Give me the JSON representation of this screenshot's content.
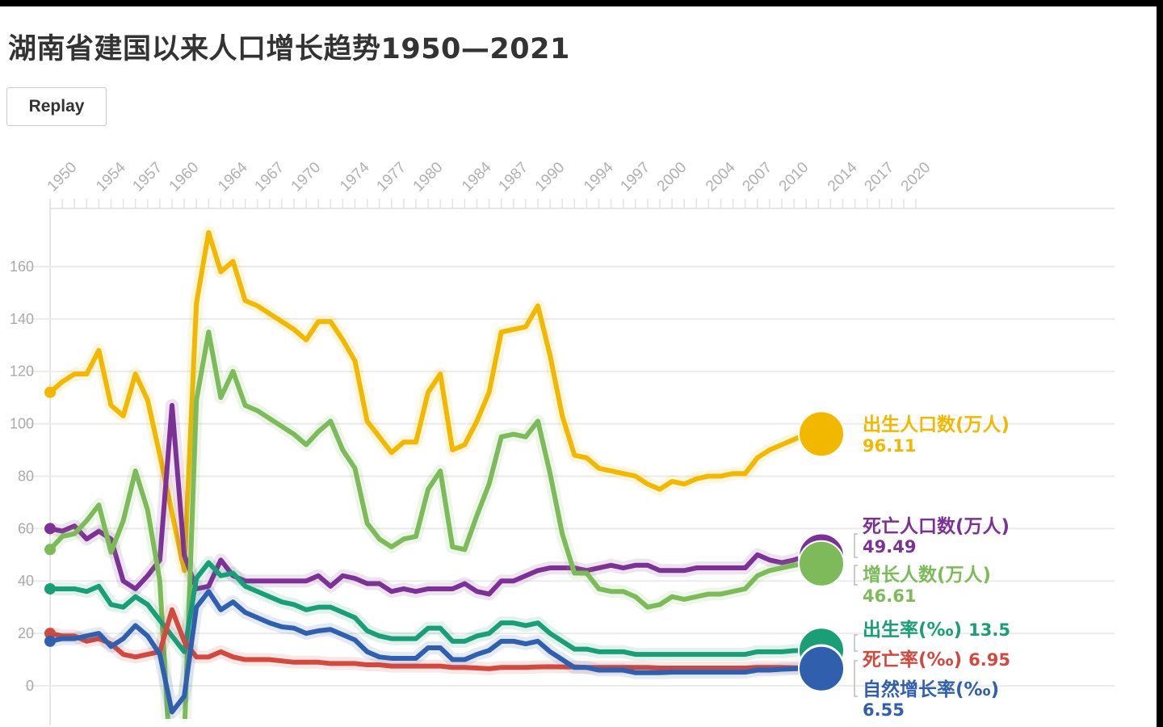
{
  "title": "湖南省建国以来人口增长趋势1950—2021",
  "replay_label": "Replay",
  "chart_data": {
    "type": "line",
    "title": "湖南省建国以来人口增长趋势1950—2021",
    "xlabel": "",
    "ylabel": "",
    "xlim": [
      1950,
      2021
    ],
    "ylim": [
      -15,
      180
    ],
    "grid": true,
    "legend": "end-of-line labels",
    "x_tick_labels": [
      "1950",
      "1954",
      "1957",
      "1960",
      "1964",
      "1967",
      "1970",
      "1974",
      "1977",
      "1980",
      "1984",
      "1987",
      "1990",
      "1994",
      "1997",
      "2000",
      "2004",
      "2007",
      "2010",
      "2014",
      "2017",
      "2020"
    ],
    "y_tick_labels": [
      "0",
      "20",
      "40",
      "60",
      "80",
      "100",
      "120",
      "140",
      "160"
    ],
    "x": [
      1950,
      1951,
      1952,
      1953,
      1954,
      1955,
      1956,
      1957,
      1958,
      1959,
      1960,
      1961,
      1962,
      1963,
      1964,
      1965,
      1966,
      1967,
      1968,
      1969,
      1970,
      1971,
      1972,
      1973,
      1974,
      1975,
      1976,
      1977,
      1978,
      1979,
      1980,
      1981,
      1982,
      1983,
      1984,
      1985,
      1986,
      1987,
      1988,
      1989,
      1990,
      1991,
      1992,
      1993,
      1994,
      1995,
      1996,
      1997,
      1998,
      1999,
      2000,
      2001,
      2002,
      2003,
      2004,
      2005,
      2006,
      2007,
      2008,
      2009,
      2010,
      2011,
      2012
    ],
    "series": [
      {
        "name": "出生人口数(万人)",
        "value_label": "96.11",
        "color": "#f2b800",
        "values": [
          112,
          116,
          119,
          119,
          128,
          107,
          103,
          119,
          109,
          88,
          66,
          44,
          146,
          173,
          158,
          162,
          147,
          145,
          142,
          139,
          136,
          132,
          139,
          139,
          132,
          124,
          101,
          95,
          89,
          93,
          93,
          112,
          119,
          90,
          92,
          101,
          112,
          135,
          136,
          137,
          145,
          126,
          103,
          88,
          87,
          83,
          82,
          81,
          80,
          77,
          75,
          78,
          77,
          79,
          80,
          80,
          81,
          81,
          87,
          90,
          92,
          94,
          96.11
        ]
      },
      {
        "name": "死亡人口数(万人)",
        "value_label": "49.49",
        "color": "#7b3294",
        "values": [
          60,
          59,
          61,
          56,
          59,
          56,
          40,
          37,
          42,
          48,
          107,
          50,
          37,
          38,
          48,
          42,
          40,
          40,
          40,
          40,
          40,
          40,
          42,
          38,
          42,
          41,
          39,
          39,
          36,
          37,
          36,
          37,
          37,
          37,
          39,
          36,
          35,
          40,
          40,
          42,
          44,
          45,
          45,
          45,
          44,
          45,
          46,
          45,
          46,
          46,
          44,
          44,
          44,
          45,
          45,
          45,
          45,
          45,
          50,
          48,
          47,
          48,
          49.49
        ]
      },
      {
        "name": "增长人数(万人)",
        "value_label": "46.61",
        "color": "#7dbb5a",
        "values": [
          52,
          57,
          58,
          63,
          69,
          51,
          63,
          82,
          67,
          40,
          -41,
          -20,
          109,
          135,
          110,
          120,
          107,
          105,
          102,
          99,
          96,
          92,
          97,
          101,
          90,
          83,
          62,
          56,
          53,
          56,
          57,
          75,
          82,
          53,
          52,
          65,
          77,
          95,
          96,
          95,
          101,
          81,
          58,
          43,
          43,
          37,
          36,
          36,
          34,
          30,
          31,
          34,
          33,
          34,
          35,
          35,
          36,
          37,
          42,
          44,
          45,
          46,
          46.61
        ]
      },
      {
        "name": "出生率(‰)",
        "value_label": "13.5",
        "color": "#1a9e77",
        "values": [
          37,
          37,
          37,
          36,
          38,
          31,
          30,
          34,
          31,
          25,
          19,
          13,
          41,
          47,
          42,
          43,
          38,
          36,
          34,
          32,
          31,
          29,
          30,
          30,
          28,
          26,
          21,
          19,
          18,
          18,
          18,
          22,
          22,
          17,
          17,
          19,
          20,
          24,
          24,
          23,
          24,
          20,
          17,
          14,
          14,
          13,
          13,
          13,
          12,
          12,
          12,
          12,
          12,
          12,
          12,
          12,
          12,
          12,
          13,
          13,
          13,
          13.4,
          13.5
        ]
      },
      {
        "name": "死亡率(‰)",
        "value_label": "6.95",
        "color": "#d1493f",
        "values": [
          20,
          19,
          19,
          17,
          18,
          16,
          12,
          11,
          12,
          13,
          29,
          17,
          11,
          11,
          13,
          11,
          10,
          10,
          10,
          9.5,
          9,
          9,
          9,
          8.5,
          8.5,
          8.5,
          8,
          8,
          7.5,
          7.5,
          7.5,
          7.5,
          7.5,
          7,
          7,
          6.8,
          6.5,
          7,
          7,
          7,
          7.2,
          7.3,
          7.2,
          7.2,
          7,
          7,
          7,
          7,
          7,
          7,
          6.8,
          6.8,
          6.8,
          6.8,
          6.8,
          6.8,
          6.8,
          6.8,
          7,
          7,
          7,
          6.9,
          6.95
        ]
      },
      {
        "name": "自然增长率(‰)",
        "value_label": "6.55",
        "color": "#3060ad",
        "values": [
          17,
          18,
          18,
          19,
          20,
          15,
          18,
          23,
          19,
          12,
          -10,
          -4,
          30,
          36,
          29,
          32,
          28,
          26,
          24,
          22.5,
          22,
          20,
          21,
          21.5,
          19.5,
          17.5,
          13,
          11,
          10.5,
          10.5,
          10.5,
          14.5,
          14.5,
          10,
          10,
          12,
          13.5,
          17,
          17,
          16,
          17,
          13,
          10,
          7,
          7,
          6,
          6,
          6,
          5,
          5,
          5,
          5.2,
          5.2,
          5.2,
          5.2,
          5.2,
          5.2,
          5.2,
          6,
          6,
          6.3,
          6.5,
          6.55
        ]
      }
    ]
  }
}
